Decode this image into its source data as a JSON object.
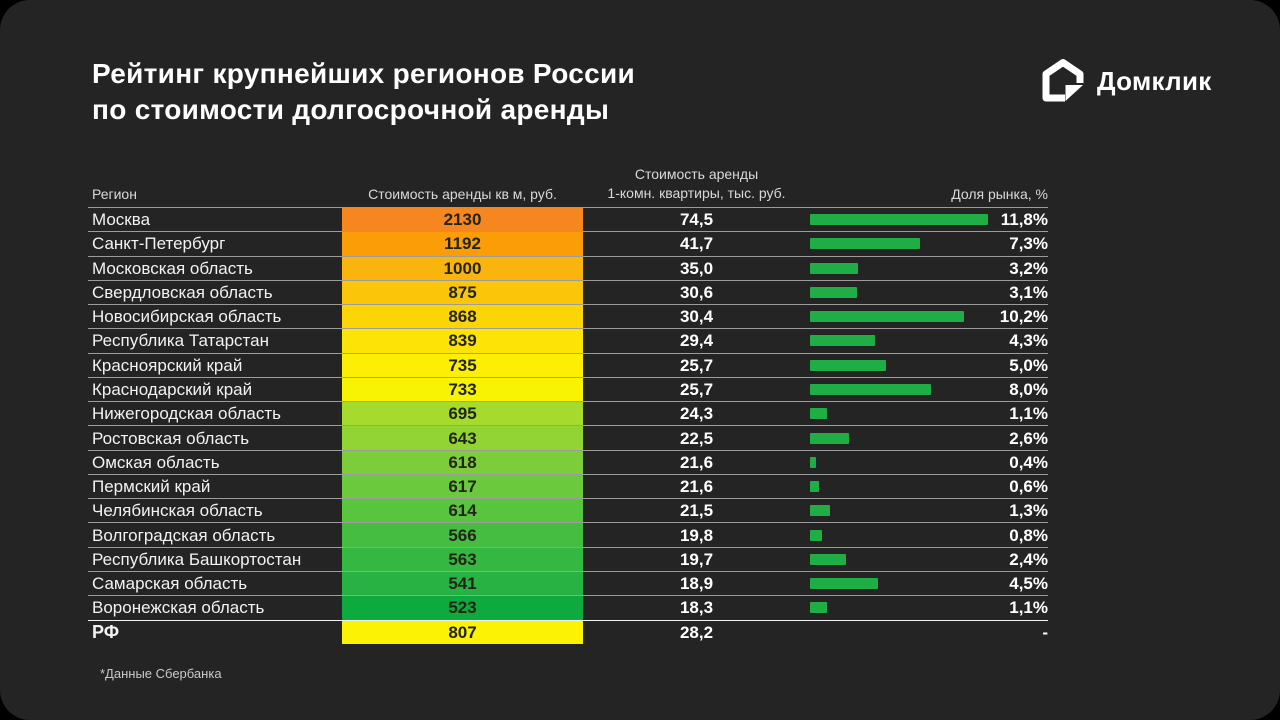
{
  "page": {
    "title_line1": "Рейтинг крупнейших регионов России",
    "title_line2": "по стоимости долгосрочной аренды",
    "footnote": "*Данные Сбербанка"
  },
  "logo": {
    "text": "Домклик",
    "icon": "domclick-house-icon"
  },
  "colors": {
    "panel": "#242424",
    "bar_green": "#1FAE45",
    "separator": "rgba(255,255,255,0.55)",
    "heat_text": "#222417"
  },
  "table": {
    "headers": {
      "region": "Регион",
      "price_sqm": "Стоимость аренды кв м, руб.",
      "price_flat_line1": "Стоимость аренды",
      "price_flat_line2": "1-комн. квартиры, тыс. руб.",
      "share": "Доля рынка, %"
    },
    "rows": [
      {
        "region": "Москва",
        "price_sqm": "2130",
        "price_flat": "74,5",
        "share_label": "11,8%",
        "share_value": 11.8,
        "heat_color": "#F6861F",
        "is_total": false
      },
      {
        "region": "Санкт-Петербург",
        "price_sqm": "1192",
        "price_flat": "41,7",
        "share_label": "7,3%",
        "share_value": 7.3,
        "heat_color": "#FA9D07",
        "is_total": false
      },
      {
        "region": "Московская область",
        "price_sqm": "1000",
        "price_flat": "35,0",
        "share_label": "3,2%",
        "share_value": 3.2,
        "heat_color": "#FAB40E",
        "is_total": false
      },
      {
        "region": "Свердловская область",
        "price_sqm": "875",
        "price_flat": "30,6",
        "share_label": "3,1%",
        "share_value": 3.1,
        "heat_color": "#FBC60A",
        "is_total": false
      },
      {
        "region": "Новосибирская область",
        "price_sqm": "868",
        "price_flat": "30,4",
        "share_label": "10,2%",
        "share_value": 10.2,
        "heat_color": "#FCD506",
        "is_total": false
      },
      {
        "region": "Республика Татарстан",
        "price_sqm": "839",
        "price_flat": "29,4",
        "share_label": "4,3%",
        "share_value": 4.3,
        "heat_color": "#FDE306",
        "is_total": false
      },
      {
        "region": "Красноярский край",
        "price_sqm": "735",
        "price_flat": "25,7",
        "share_label": "5,0%",
        "share_value": 5.0,
        "heat_color": "#FCEE04",
        "is_total": false
      },
      {
        "region": "Краснодарский край",
        "price_sqm": "733",
        "price_flat": "25,7",
        "share_label": "8,0%",
        "share_value": 8.0,
        "heat_color": "#F8F303",
        "is_total": false
      },
      {
        "region": "Нижегородская область",
        "price_sqm": "695",
        "price_flat": "24,3",
        "share_label": "1,1%",
        "share_value": 1.1,
        "heat_color": "#A6DB2D",
        "is_total": false
      },
      {
        "region": "Ростовская область",
        "price_sqm": "643",
        "price_flat": "22,5",
        "share_label": "2,6%",
        "share_value": 2.6,
        "heat_color": "#92D434",
        "is_total": false
      },
      {
        "region": "Омская область",
        "price_sqm": "618",
        "price_flat": "21,6",
        "share_label": "0,4%",
        "share_value": 0.4,
        "heat_color": "#7CCD39",
        "is_total": false
      },
      {
        "region": "Пермский край",
        "price_sqm": "617",
        "price_flat": "21,6",
        "share_label": "0,6%",
        "share_value": 0.6,
        "heat_color": "#6AC93C",
        "is_total": false
      },
      {
        "region": "Челябинская область",
        "price_sqm": "614",
        "price_flat": "21,5",
        "share_label": "1,3%",
        "share_value": 1.3,
        "heat_color": "#59C43E",
        "is_total": false
      },
      {
        "region": "Волгоградская область",
        "price_sqm": "566",
        "price_flat": "19,8",
        "share_label": "0,8%",
        "share_value": 0.8,
        "heat_color": "#45BD40",
        "is_total": false
      },
      {
        "region": "Республика Башкортостан",
        "price_sqm": "563",
        "price_flat": "19,7",
        "share_label": "2,4%",
        "share_value": 2.4,
        "heat_color": "#35B841",
        "is_total": false
      },
      {
        "region": "Самарская область",
        "price_sqm": "541",
        "price_flat": "18,9",
        "share_label": "4,5%",
        "share_value": 4.5,
        "heat_color": "#27B243",
        "is_total": false
      },
      {
        "region": "Воронежская область",
        "price_sqm": "523",
        "price_flat": "18,3",
        "share_label": "1,1%",
        "share_value": 1.1,
        "heat_color": "#0FAA3E",
        "is_total": false
      },
      {
        "region": "РФ",
        "price_sqm": "807",
        "price_flat": "28,2",
        "share_label": "-",
        "share_value": null,
        "heat_color": "#FCF203",
        "is_total": true
      }
    ]
  },
  "chart_data": {
    "type": "table",
    "title": "Рейтинг крупнейших регионов России по стоимости долгосрочной аренды",
    "columns": [
      "Регион",
      "Стоимость аренды кв м, руб.",
      "Стоимость аренды 1-комн. квартиры, тыс. руб.",
      "Доля рынка, %"
    ],
    "rows": [
      [
        "Москва",
        2130,
        74.5,
        11.8
      ],
      [
        "Санкт-Петербург",
        1192,
        41.7,
        7.3
      ],
      [
        "Московская область",
        1000,
        35.0,
        3.2
      ],
      [
        "Свердловская область",
        875,
        30.6,
        3.1
      ],
      [
        "Новосибирская область",
        868,
        30.4,
        10.2
      ],
      [
        "Республика Татарстан",
        839,
        29.4,
        4.3
      ],
      [
        "Красноярский край",
        735,
        25.7,
        5.0
      ],
      [
        "Краснодарский край",
        733,
        25.7,
        8.0
      ],
      [
        "Нижегородская область",
        695,
        24.3,
        1.1
      ],
      [
        "Ростовская область",
        643,
        22.5,
        2.6
      ],
      [
        "Омская область",
        618,
        21.6,
        0.4
      ],
      [
        "Пермский край",
        617,
        21.6,
        0.6
      ],
      [
        "Челябинская область",
        614,
        21.5,
        1.3
      ],
      [
        "Волгоградская область",
        566,
        19.8,
        0.8
      ],
      [
        "Республика Башкортостан",
        563,
        19.7,
        2.4
      ],
      [
        "Самарская область",
        541,
        18.9,
        4.5
      ],
      [
        "Воронежская область",
        523,
        18.3,
        1.1
      ],
      [
        "РФ",
        807,
        28.2,
        null
      ]
    ],
    "bar_series": {
      "name": "Доля рынка, %",
      "color": "#1FAE45",
      "max_value": 11.8
    },
    "heat_column": {
      "name": "Стоимость аренды кв м, руб.",
      "scale": "orange=high → green=low",
      "high_color": "#F6861F",
      "low_color": "#0FAA3E"
    },
    "legend_position": "none",
    "grid": "row-separators",
    "source_note": "*Данные Сбербанка"
  }
}
